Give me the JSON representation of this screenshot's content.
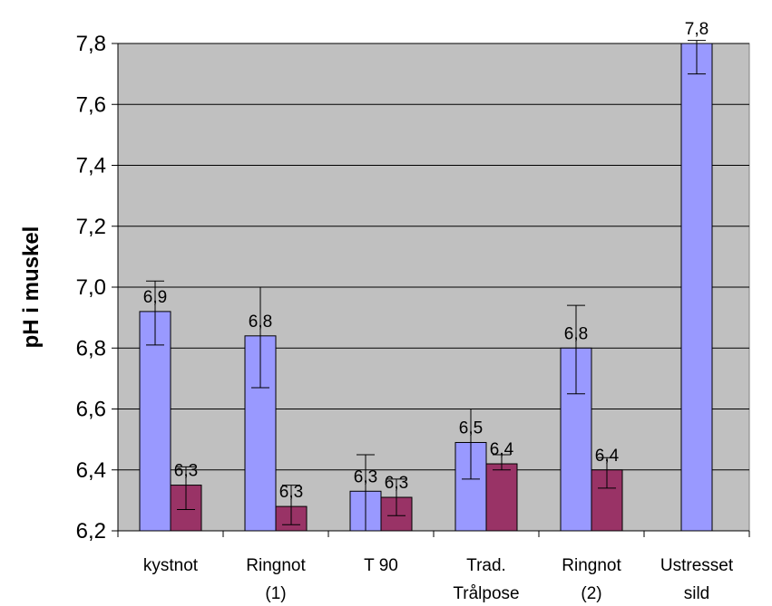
{
  "chart_data": {
    "type": "bar",
    "title": "",
    "xlabel": "",
    "ylabel": "pH i muskel",
    "ylim": [
      6.2,
      7.8
    ],
    "yticks": [
      6.2,
      6.4,
      6.6,
      6.8,
      7.0,
      7.2,
      7.4,
      7.6,
      7.8
    ],
    "ytick_labels": [
      "6,2",
      "6,4",
      "6,6",
      "6,8",
      "7,0",
      "7,2",
      "7,4",
      "7,6",
      "7,8"
    ],
    "grid": true,
    "categories": [
      [
        "kystnot"
      ],
      [
        "Ringnot",
        "(1)"
      ],
      [
        "T 90"
      ],
      [
        "Trad.",
        "Trålpose"
      ],
      [
        "Ringnot",
        "(2)"
      ],
      [
        "Ustresset",
        "sild"
      ]
    ],
    "series": [
      {
        "color": "#9999ff",
        "values": [
          6.92,
          6.84,
          6.33,
          6.49,
          6.8,
          7.8
        ],
        "labels": [
          "6,9",
          "6,8",
          "6,3",
          "6,5",
          "6,8",
          "7,8"
        ],
        "err_low": [
          6.81,
          6.67,
          6.2,
          6.37,
          6.65,
          7.7
        ],
        "err_high": [
          7.02,
          7.0,
          6.45,
          6.6,
          6.94,
          7.81
        ]
      },
      {
        "color": "#993366",
        "values": [
          6.35,
          6.28,
          6.31,
          6.42,
          6.4,
          null
        ],
        "labels": [
          "6,3",
          "6,3",
          "6,3",
          "6,4",
          "6,4",
          null
        ],
        "err_low": [
          6.27,
          6.22,
          6.25,
          6.4,
          6.34,
          null
        ],
        "err_high": [
          6.41,
          6.35,
          6.37,
          6.45,
          6.44,
          null
        ]
      }
    ],
    "plot_background": "#c0c0c0"
  }
}
